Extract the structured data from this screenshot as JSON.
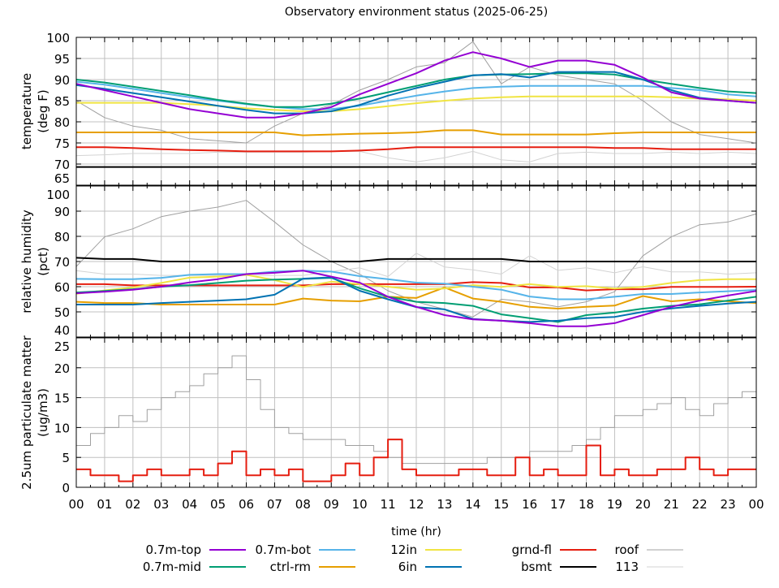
{
  "title": "Observatory environment status (2025-06-25)",
  "xaxis": {
    "label": "time (hr)",
    "range": [
      0,
      24
    ],
    "tick_labels": [
      "00",
      "01",
      "02",
      "03",
      "04",
      "05",
      "06",
      "07",
      "08",
      "09",
      "10",
      "11",
      "12",
      "13",
      "14",
      "15",
      "16",
      "17",
      "18",
      "19",
      "20",
      "21",
      "22",
      "23",
      "00"
    ]
  },
  "legend": [
    {
      "name": "0.7m-top",
      "color": "#9400d3"
    },
    {
      "name": "0.7m-mid",
      "color": "#009e73"
    },
    {
      "name": "0.7m-bot",
      "color": "#56b4e9"
    },
    {
      "name": "ctrl-rm",
      "color": "#e69f00"
    },
    {
      "name": "12in",
      "color": "#f0e442"
    },
    {
      "name": "6in",
      "color": "#0072b2"
    },
    {
      "name": "grnd-fl",
      "color": "#e51e10"
    },
    {
      "name": "bsmt",
      "color": "#000000"
    },
    {
      "name": "roof",
      "color": "#a0a0a0"
    },
    {
      "name": "113",
      "color": "#d3d3d3"
    }
  ],
  "chart_data": [
    {
      "type": "line",
      "ylabel": [
        "temperature",
        "(deg F)"
      ],
      "ylim": [
        65,
        100
      ],
      "yticks": [
        65,
        70,
        75,
        80,
        85,
        90,
        95,
        100
      ],
      "grid": true,
      "x": [
        0,
        1,
        2,
        3,
        4,
        5,
        6,
        7,
        8,
        9,
        10,
        11,
        12,
        13,
        14,
        15,
        16,
        17,
        18,
        19,
        20,
        21,
        22,
        23,
        24
      ],
      "series": [
        {
          "name": "roof",
          "values": [
            85,
            81,
            79,
            78,
            76,
            75.5,
            75,
            79,
            82,
            84,
            87.5,
            90,
            93,
            94,
            99,
            89,
            93,
            91,
            90,
            89,
            85,
            80,
            77,
            76,
            75
          ]
        },
        {
          "name": "113",
          "values": [
            72,
            72.2,
            72.5,
            72.5,
            72.5,
            72.8,
            72.8,
            72.8,
            72.8,
            73,
            73,
            71.5,
            70.5,
            71.5,
            73,
            71,
            70.5,
            72.5,
            72.8,
            72.5,
            72.5,
            72.8,
            72.5,
            72.8,
            72.5
          ]
        },
        {
          "name": "bsmt",
          "values": [
            69.3,
            69.3,
            69.3,
            69.3,
            69.3,
            69.3,
            69.3,
            69.3,
            69.3,
            69.3,
            69.3,
            69.3,
            69.3,
            69.3,
            69.3,
            69.3,
            69.3,
            69.3,
            69.3,
            69.3,
            69.3,
            69.3,
            69.3,
            69.3,
            69.3
          ]
        },
        {
          "name": "grnd-fl",
          "values": [
            74,
            74,
            73.8,
            73.5,
            73.3,
            73.2,
            73,
            73,
            73,
            73,
            73.2,
            73.5,
            74,
            74,
            74,
            74,
            74,
            74,
            74,
            73.8,
            73.8,
            73.5,
            73.5,
            73.5,
            73.5
          ]
        },
        {
          "name": "ctrl-rm",
          "values": [
            77.5,
            77.5,
            77.5,
            77.5,
            77.5,
            77.5,
            77.5,
            77.5,
            76.8,
            77,
            77.2,
            77.3,
            77.5,
            78,
            78,
            77,
            77,
            77,
            77,
            77.3,
            77.5,
            77.5,
            77.5,
            77.5,
            77.5
          ]
        },
        {
          "name": "12in",
          "values": [
            84.5,
            84.5,
            84.5,
            84.5,
            84.2,
            83.8,
            83.2,
            82.8,
            82.5,
            82.5,
            83,
            83.7,
            84.4,
            85,
            85.5,
            85.8,
            86,
            86,
            86,
            86,
            86,
            85.8,
            85.5,
            85.3,
            85
          ]
        },
        {
          "name": "0.7m-bot",
          "values": [
            89.5,
            88.8,
            87.8,
            86.8,
            85.8,
            85,
            84.2,
            83.5,
            83,
            83,
            83.8,
            85,
            86.2,
            87.2,
            88,
            88.3,
            88.5,
            88.5,
            88.5,
            88.5,
            88.5,
            88,
            87.5,
            86.5,
            86
          ]
        },
        {
          "name": "0.7m-mid",
          "values": [
            90,
            89.3,
            88.3,
            87.3,
            86.3,
            85.2,
            84.3,
            83.5,
            83.5,
            84.3,
            85.5,
            87,
            88.5,
            90,
            91,
            91.2,
            91.3,
            91.5,
            91.5,
            91.2,
            90,
            89,
            88,
            87.2,
            86.8
          ]
        },
        {
          "name": "6in",
          "values": [
            88.7,
            87.8,
            86.8,
            85.8,
            84.8,
            83.8,
            82.8,
            82,
            82,
            82.5,
            84,
            86.2,
            88,
            89.5,
            91,
            91.3,
            90.5,
            91.8,
            91.8,
            91.8,
            90,
            87.5,
            85.7,
            85,
            84.5
          ]
        },
        {
          "name": "0.7m-top",
          "values": [
            89,
            87.5,
            86,
            84.5,
            83,
            82,
            81,
            81,
            82,
            83.5,
            86.5,
            89,
            91.5,
            94.5,
            96.5,
            95,
            93,
            94.5,
            94.5,
            93.5,
            90.5,
            87,
            85.5,
            85,
            84.5
          ]
        }
      ]
    },
    {
      "type": "line",
      "ylabel": [
        "relative humidity",
        "(pct)"
      ],
      "ylim": [
        40,
        100
      ],
      "yticks": [
        40,
        50,
        60,
        70,
        80,
        90,
        100
      ],
      "grid": true,
      "x": [
        0,
        1,
        2,
        3,
        4,
        5,
        6,
        7,
        8,
        9,
        10,
        11,
        12,
        13,
        14,
        15,
        16,
        17,
        18,
        19,
        20,
        21,
        22,
        23,
        24
      ],
      "series": [
        {
          "name": "roof",
          "values": [
            68,
            79.8,
            83,
            87.8,
            90,
            91.6,
            94.3,
            85.7,
            76.6,
            70,
            65,
            58.4,
            54,
            51,
            48,
            55,
            54,
            52,
            54,
            58,
            72.3,
            79.8,
            84.6,
            85.7,
            88.9
          ]
        },
        {
          "name": "113",
          "values": [
            66.4,
            65,
            65,
            64.5,
            64.5,
            64.5,
            64.5,
            64.5,
            64.5,
            66,
            67.5,
            64,
            73.3,
            67.8,
            66.7,
            65,
            72.3,
            66.5,
            67.5,
            65.5,
            67.9,
            65.9,
            65.9,
            65,
            65.5
          ]
        },
        {
          "name": "bsmt",
          "values": [
            71.5,
            71,
            71,
            70,
            70,
            70,
            70,
            70,
            70,
            70,
            70,
            71,
            71,
            71,
            71,
            71,
            70,
            70,
            70,
            70,
            70,
            70,
            70,
            70,
            70
          ]
        },
        {
          "name": "grnd-fl",
          "values": [
            61,
            61,
            60.5,
            60.5,
            60.5,
            60.5,
            60.5,
            60.5,
            60.5,
            61,
            61,
            61,
            61,
            61,
            61.8,
            61.5,
            59.7,
            59.7,
            58.5,
            59,
            59,
            59.9,
            59.9,
            59.9,
            60
          ]
        },
        {
          "name": "ctrl-rm",
          "values": [
            54,
            53.5,
            53.5,
            52.9,
            52.9,
            52.9,
            52.9,
            52.9,
            55.3,
            54.5,
            54.2,
            56,
            55.5,
            59.7,
            55.3,
            54,
            52,
            51.3,
            52,
            52.5,
            56.3,
            54.2,
            55,
            54.2,
            53.5
          ]
        },
        {
          "name": "12in",
          "values": [
            57.2,
            58.5,
            59.7,
            61.5,
            63.6,
            64,
            64.7,
            62.6,
            59.9,
            62,
            61,
            60,
            58.8,
            59.3,
            60.6,
            59.9,
            61,
            59.9,
            60.2,
            59.3,
            59.9,
            61.5,
            62.6,
            63,
            63
          ]
        },
        {
          "name": "0.7m-bot",
          "values": [
            63.1,
            63,
            63,
            63.5,
            64.7,
            65,
            65,
            66,
            66.4,
            66,
            64.2,
            63,
            61.6,
            61.2,
            60,
            58.8,
            56.1,
            55,
            55,
            56,
            57.1,
            57.1,
            57.7,
            58.2,
            58.7
          ]
        },
        {
          "name": "0.7m-mid",
          "values": [
            57.7,
            58.3,
            59,
            60,
            60.6,
            61.5,
            62.4,
            62.8,
            63.1,
            63.5,
            59.4,
            56,
            54,
            53.5,
            52.4,
            49,
            47.5,
            46,
            48.7,
            49.7,
            51.3,
            52.4,
            53,
            54.5,
            56
          ]
        },
        {
          "name": "6in",
          "values": [
            52.9,
            52.9,
            52.9,
            53.5,
            54,
            54.5,
            55,
            56.8,
            63.2,
            63.7,
            58.4,
            55,
            51.9,
            51,
            47.2,
            46.5,
            46,
            46.5,
            47.5,
            48,
            50,
            51.4,
            52.4,
            53.3,
            54
          ]
        },
        {
          "name": "0.7m-top",
          "values": [
            57.4,
            58,
            58.8,
            60,
            61.7,
            63,
            65,
            65.5,
            66.4,
            64,
            61.6,
            56,
            52,
            48.7,
            47,
            46.5,
            45.5,
            44.3,
            44.3,
            45.5,
            48.7,
            52,
            54.5,
            56.5,
            58.3
          ]
        }
      ]
    },
    {
      "type": "line",
      "ylabel": [
        "2.5um particulate matter",
        "(ug/m3)"
      ],
      "ylim": [
        0,
        25
      ],
      "yticks": [
        0,
        5,
        10,
        15,
        20,
        25
      ],
      "grid": true,
      "x": [
        0,
        0.5,
        1,
        1.5,
        2,
        2.5,
        3,
        3.5,
        4,
        4.5,
        5,
        5.5,
        6,
        6.5,
        7,
        7.5,
        8,
        8.5,
        9,
        9.5,
        10,
        10.5,
        11,
        11.5,
        12,
        12.5,
        13,
        13.5,
        14,
        14.5,
        15,
        15.5,
        16,
        16.5,
        17,
        17.5,
        18,
        18.5,
        19,
        19.5,
        20,
        20.5,
        21,
        21.5,
        22,
        22.5,
        23,
        23.5,
        24
      ],
      "series": [
        {
          "name": "roof",
          "values": [
            7,
            9,
            10,
            12,
            11,
            13,
            15,
            16,
            17,
            19,
            20,
            22,
            18,
            13,
            10,
            9,
            8,
            8,
            8,
            7,
            7,
            6,
            5,
            4,
            4,
            4,
            4,
            4,
            4,
            5,
            5,
            5,
            6,
            6,
            6,
            7,
            8,
            10,
            12,
            12,
            13,
            14,
            15,
            13,
            12,
            14,
            15,
            16,
            17
          ]
        },
        {
          "name": "grnd-fl",
          "values": [
            3,
            2,
            2,
            1,
            2,
            3,
            2,
            2,
            3,
            2,
            4,
            6,
            2,
            3,
            2,
            3,
            1,
            1,
            2,
            4,
            2,
            5,
            8,
            3,
            2,
            2,
            2,
            3,
            3,
            2,
            2,
            5,
            2,
            3,
            2,
            2,
            7,
            2,
            3,
            2,
            2,
            3,
            3,
            5,
            3,
            2,
            3,
            3,
            3
          ]
        }
      ]
    }
  ]
}
